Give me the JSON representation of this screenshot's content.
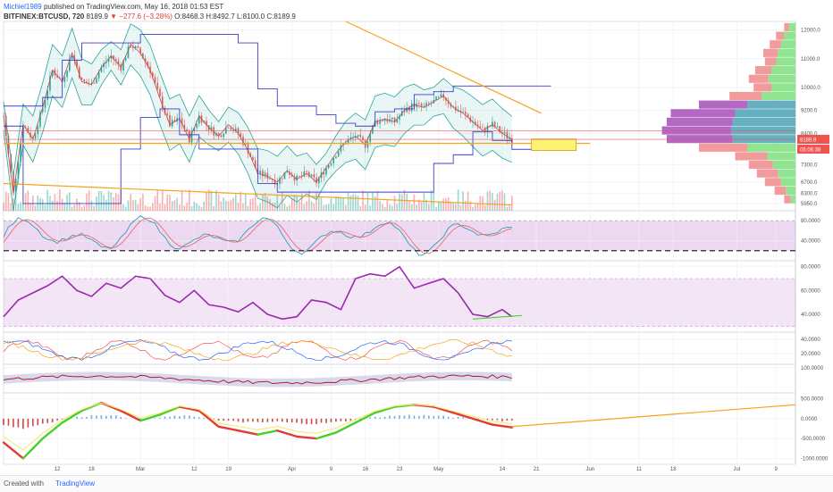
{
  "header": {
    "author": "Michiel1989",
    "published": "published on TradingView.com, May 16, 2018 01:53 EST",
    "symbol": "BITFINEX:BTCUSD, 720",
    "last": "8189.9",
    "change": "▼ −277.6 (−3.28%)",
    "ohlc": "O:8468.3  H:8492.7  L:8100.0  C:8189.9"
  },
  "footer": {
    "created": "Created with",
    "brand": "TradingView"
  },
  "colors": {
    "up": "#26a69a",
    "down": "#ef5350",
    "trend": "#f7a21b",
    "channel": "#3f3fc8",
    "band": "#26a69a",
    "oscillator": "#9c27b0",
    "macd_up": "#46d12a",
    "macd_down": "#e53935"
  },
  "chart_data": [
    {
      "type": "candlestick",
      "name": "main",
      "symbol": "BITFINEX:BTCUSD",
      "interval": "720",
      "ylim": [
        5700,
        12300
      ],
      "y_ticks": [
        "12000.0",
        "11000.0",
        "10000.0",
        "9200.0",
        "8400.0",
        "7300.0",
        "6700.0",
        "6300.0",
        "5950.0"
      ],
      "y_tick_values": [
        12000,
        11000,
        10000,
        9200,
        8400,
        7300,
        6700,
        6300,
        5950
      ],
      "x_ticks": [
        "12",
        "19",
        "Mar",
        "12",
        "19",
        "Apr",
        "9",
        "16",
        "23",
        "May",
        "14",
        "21",
        "Jun",
        "11",
        "18",
        "Jul",
        "9"
      ],
      "x_tick_days": [
        11,
        18,
        28,
        39,
        46,
        59,
        67,
        74,
        81,
        89,
        102,
        109,
        120,
        130,
        137,
        150,
        158
      ],
      "day_range": [
        0,
        162
      ],
      "close_path_days": [
        0,
        2,
        4,
        6,
        8,
        10,
        12,
        14,
        16,
        18,
        20,
        22,
        24,
        26,
        28,
        30,
        32,
        34,
        36,
        38,
        40,
        42,
        44,
        46,
        48,
        50,
        52,
        54,
        56,
        58,
        60,
        62,
        64,
        66,
        68,
        70,
        72,
        74,
        76,
        78,
        80,
        82,
        84,
        86,
        88,
        90,
        92,
        94,
        96,
        98,
        100,
        102,
        104
      ],
      "close_path_values": [
        9000,
        6300,
        8700,
        8200,
        9300,
        10600,
        10200,
        11200,
        10200,
        10100,
        10700,
        11100,
        10700,
        11500,
        11200,
        10600,
        9600,
        8700,
        8900,
        8200,
        9000,
        8600,
        8300,
        8700,
        8400,
        7800,
        7000,
        6900,
        6700,
        7100,
        6800,
        7000,
        6700,
        7200,
        7700,
        8100,
        8300,
        8000,
        8800,
        8900,
        8800,
        9200,
        9400,
        9300,
        9500,
        9700,
        9300,
        9100,
        8800,
        8500,
        8700,
        8400,
        8190
      ],
      "last_price": "8189.9",
      "last_price_value": 8189.9,
      "countdown": "05:06:38",
      "trendlines": [
        {
          "name": "resistance",
          "x": [
            70,
            110
          ],
          "y": [
            12300,
            9100
          ]
        },
        {
          "name": "lower-support",
          "x": [
            0,
            104
          ],
          "y": [
            6650,
            5900
          ]
        },
        {
          "name": "support-level",
          "x": [
            0,
            120
          ],
          "y": [
            8050,
            8050
          ]
        }
      ],
      "volume_profile_levels": [
        12100,
        11800,
        11500,
        11200,
        10900,
        10600,
        10300,
        10000,
        9700,
        9400,
        9100,
        8800,
        8500,
        8200,
        7900,
        7600,
        7300,
        7000,
        6700,
        6400,
        6100
      ],
      "volume_profile_buy": [
        8,
        14,
        18,
        22,
        24,
        30,
        34,
        30,
        42,
        60,
        75,
        78,
        80,
        78,
        60,
        35,
        28,
        22,
        18,
        12,
        6
      ],
      "volume_profile_sell": [
        6,
        10,
        14,
        18,
        14,
        20,
        24,
        22,
        40,
        60,
        80,
        82,
        86,
        82,
        60,
        40,
        30,
        26,
        20,
        14,
        8
      ]
    },
    {
      "type": "line",
      "name": "stochastic",
      "ylim": [
        0,
        100
      ],
      "y_ticks": [
        "80.0000",
        "40.0000"
      ],
      "y_tick_values": [
        80,
        40
      ]
    },
    {
      "type": "line",
      "name": "rsi",
      "ylim": [
        25,
        85
      ],
      "y_ticks": [
        "80.0000",
        "60.0000",
        "40.0000"
      ],
      "y_tick_values": [
        80,
        60,
        40
      ],
      "x": [
        0,
        3,
        6,
        9,
        12,
        15,
        18,
        21,
        24,
        27,
        30,
        33,
        36,
        39,
        42,
        45,
        48,
        51,
        54,
        57,
        60,
        63,
        66,
        69,
        72,
        75,
        78,
        81,
        84,
        87,
        90,
        93,
        96,
        99,
        102,
        104
      ],
      "values": [
        38,
        52,
        58,
        64,
        72,
        60,
        55,
        66,
        62,
        72,
        70,
        56,
        50,
        60,
        48,
        46,
        42,
        50,
        40,
        36,
        38,
        52,
        50,
        44,
        70,
        74,
        72,
        80,
        62,
        66,
        70,
        58,
        40,
        38,
        44,
        38
      ]
    },
    {
      "type": "line",
      "name": "dmi",
      "ylim": [
        5,
        50
      ],
      "y_ticks": [
        "40.0000",
        "20.0000"
      ],
      "y_tick_values": [
        40,
        20
      ]
    },
    {
      "type": "line",
      "name": "oscillator-band",
      "ylim": [
        -50,
        120
      ],
      "y_ticks": [
        "100.0000"
      ],
      "y_tick_values": [
        100
      ]
    },
    {
      "type": "bar",
      "name": "macd",
      "ylim": [
        -1150,
        650
      ],
      "y_ticks": [
        "500.0000",
        "0.0000",
        "-500.0000",
        "-1000.0000"
      ],
      "y_tick_values": [
        500,
        0,
        -500,
        -1000
      ],
      "x": [
        0,
        4,
        8,
        12,
        16,
        20,
        24,
        28,
        32,
        36,
        40,
        44,
        48,
        52,
        56,
        60,
        64,
        68,
        72,
        76,
        80,
        84,
        88,
        92,
        96,
        100,
        104
      ],
      "values": [
        -600,
        -1000,
        -500,
        -100,
        200,
        400,
        200,
        -50,
        100,
        300,
        200,
        -200,
        -300,
        -400,
        -300,
        -450,
        -500,
        -350,
        -100,
        150,
        300,
        350,
        300,
        150,
        0,
        -150,
        -220
      ],
      "trendline": {
        "x": [
          104,
          162
        ],
        "y": [
          -200,
          350
        ]
      }
    }
  ]
}
